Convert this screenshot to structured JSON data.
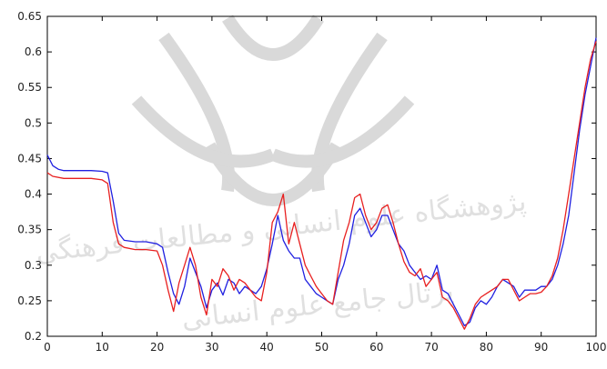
{
  "chart_data": {
    "type": "line",
    "title": "",
    "xlabel": "",
    "ylabel": "",
    "xlim": [
      0,
      100
    ],
    "ylim": [
      0.2,
      0.65
    ],
    "xticks": [
      0,
      10,
      20,
      30,
      40,
      50,
      60,
      70,
      80,
      90,
      100
    ],
    "yticks": [
      0.2,
      0.25,
      0.3,
      0.35,
      0.4,
      0.45,
      0.5,
      0.55,
      0.6,
      0.65
    ],
    "xtick_labels": [
      "0",
      "10",
      "20",
      "30",
      "40",
      "50",
      "60",
      "70",
      "80",
      "90",
      "100"
    ],
    "ytick_labels": [
      "0.2",
      "0.25",
      "0.3",
      "0.35",
      "0.4",
      "0.45",
      "0.5",
      "0.55",
      "0.6",
      "0.65"
    ],
    "grid": false,
    "legend": "none",
    "series": [
      {
        "color": "#2020e0",
        "x": [
          0,
          1,
          2,
          3,
          5,
          8,
          10,
          11,
          12,
          13,
          14,
          16,
          18,
          20,
          21,
          22,
          23,
          24,
          25,
          26,
          27,
          28,
          29,
          30,
          31,
          32,
          33,
          34,
          35,
          36,
          37,
          38,
          39,
          40,
          41,
          42,
          43,
          44,
          45,
          46,
          47,
          48,
          49,
          50,
          51,
          52,
          53,
          54,
          55,
          56,
          57,
          58,
          59,
          60,
          61,
          62,
          63,
          64,
          65,
          66,
          67,
          68,
          69,
          70,
          71,
          72,
          73,
          74,
          75,
          76,
          77,
          78,
          79,
          80,
          81,
          82,
          83,
          84,
          85,
          86,
          87,
          88,
          89,
          90,
          91,
          92,
          93,
          94,
          95,
          96,
          97,
          98,
          99,
          100
        ],
        "y": [
          0.455,
          0.44,
          0.435,
          0.433,
          0.433,
          0.433,
          0.432,
          0.43,
          0.39,
          0.345,
          0.335,
          0.333,
          0.333,
          0.33,
          0.325,
          0.29,
          0.26,
          0.245,
          0.27,
          0.31,
          0.29,
          0.27,
          0.24,
          0.265,
          0.275,
          0.258,
          0.28,
          0.275,
          0.26,
          0.27,
          0.265,
          0.26,
          0.27,
          0.295,
          0.33,
          0.37,
          0.335,
          0.32,
          0.31,
          0.31,
          0.28,
          0.27,
          0.26,
          0.255,
          0.25,
          0.245,
          0.28,
          0.3,
          0.33,
          0.37,
          0.38,
          0.36,
          0.34,
          0.35,
          0.37,
          0.37,
          0.35,
          0.33,
          0.32,
          0.3,
          0.29,
          0.28,
          0.285,
          0.28,
          0.3,
          0.265,
          0.26,
          0.245,
          0.23,
          0.215,
          0.22,
          0.24,
          0.25,
          0.245,
          0.255,
          0.27,
          0.28,
          0.275,
          0.27,
          0.255,
          0.265,
          0.265,
          0.265,
          0.27,
          0.27,
          0.28,
          0.3,
          0.33,
          0.37,
          0.43,
          0.49,
          0.54,
          0.58,
          0.62
        ]
      },
      {
        "color": "#e82020",
        "x": [
          0,
          1,
          3,
          5,
          8,
          10,
          11,
          12,
          13,
          14,
          16,
          18,
          20,
          21,
          22,
          23,
          24,
          25,
          26,
          27,
          28,
          29,
          30,
          31,
          32,
          33,
          34,
          35,
          36,
          37,
          38,
          39,
          40,
          41,
          42,
          43,
          44,
          45,
          46,
          47,
          48,
          49,
          50,
          51,
          52,
          53,
          54,
          55,
          56,
          57,
          58,
          59,
          60,
          61,
          62,
          63,
          64,
          65,
          66,
          67,
          68,
          69,
          70,
          71,
          72,
          73,
          74,
          75,
          76,
          77,
          78,
          79,
          80,
          81,
          82,
          83,
          84,
          85,
          86,
          87,
          88,
          89,
          90,
          91,
          92,
          93,
          94,
          95,
          96,
          97,
          98,
          99,
          100
        ],
        "y": [
          0.43,
          0.425,
          0.422,
          0.422,
          0.422,
          0.42,
          0.415,
          0.36,
          0.33,
          0.325,
          0.322,
          0.322,
          0.32,
          0.3,
          0.265,
          0.235,
          0.275,
          0.3,
          0.325,
          0.3,
          0.255,
          0.23,
          0.28,
          0.27,
          0.295,
          0.285,
          0.265,
          0.28,
          0.275,
          0.265,
          0.255,
          0.25,
          0.29,
          0.36,
          0.375,
          0.4,
          0.33,
          0.36,
          0.33,
          0.3,
          0.285,
          0.27,
          0.26,
          0.25,
          0.245,
          0.29,
          0.335,
          0.36,
          0.395,
          0.4,
          0.37,
          0.35,
          0.36,
          0.38,
          0.385,
          0.36,
          0.33,
          0.305,
          0.29,
          0.285,
          0.295,
          0.27,
          0.28,
          0.29,
          0.255,
          0.25,
          0.24,
          0.225,
          0.21,
          0.225,
          0.245,
          0.255,
          0.26,
          0.265,
          0.27,
          0.28,
          0.28,
          0.265,
          0.25,
          0.255,
          0.26,
          0.26,
          0.262,
          0.27,
          0.285,
          0.31,
          0.35,
          0.4,
          0.45,
          0.5,
          0.55,
          0.59,
          0.615
        ]
      }
    ]
  },
  "watermark": {
    "lines": [
      "پژوهشگاه علوم انسانی و مطالعات فرهنگی",
      "پرتال جامع علوم انسانی"
    ]
  }
}
